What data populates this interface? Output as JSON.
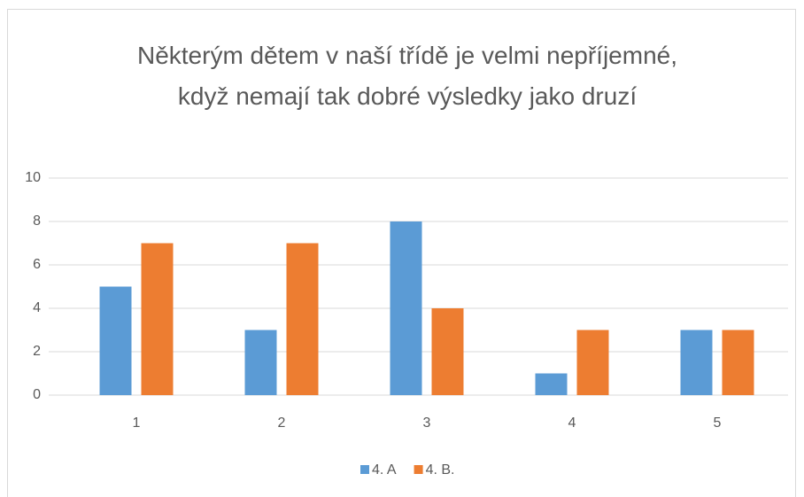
{
  "chart_data": {
    "type": "bar",
    "title": "Některým dětem v naší třídě je velmi nepříjemné, když nemají tak dobré výsledky jako druzí",
    "categories": [
      "1",
      "2",
      "3",
      "4",
      "5"
    ],
    "series": [
      {
        "name": "4. A",
        "color": "#5b9bd5",
        "values": [
          5,
          3,
          8,
          1,
          3
        ]
      },
      {
        "name": "4. B.",
        "color": "#ed7d31",
        "values": [
          7,
          7,
          4,
          3,
          3
        ]
      }
    ],
    "ylim": [
      0,
      10
    ],
    "yticks": [
      0,
      2,
      4,
      6,
      8,
      10
    ],
    "grid": true,
    "legend": "bottom"
  }
}
